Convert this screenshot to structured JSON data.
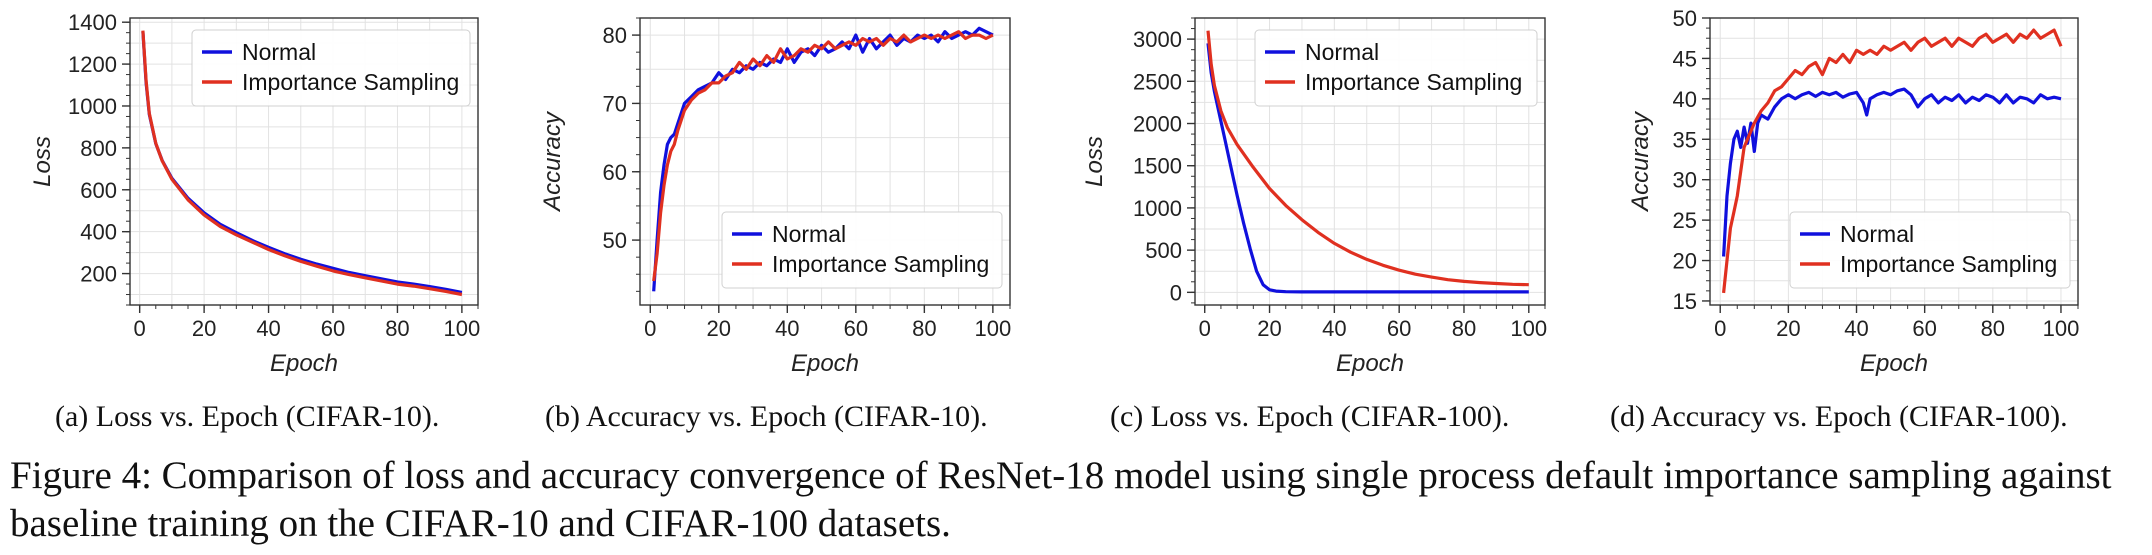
{
  "chart_data": [
    {
      "type": "line",
      "xlabel": "Epoch",
      "ylabel": "Loss",
      "xlim": [
        -3,
        105
      ],
      "ylim": [
        50,
        1420
      ],
      "xticks": [
        0,
        20,
        40,
        60,
        80,
        100
      ],
      "yticks": [
        200,
        400,
        600,
        800,
        1000,
        1200,
        1400
      ],
      "grid": true,
      "legend": "top-right",
      "caption": "(a)  Loss vs. Epoch (CIFAR-10).",
      "series": [
        {
          "name": "Normal",
          "color": "#1010dd",
          "x": [
            1,
            2,
            3,
            5,
            7,
            10,
            15,
            20,
            25,
            30,
            35,
            40,
            45,
            50,
            55,
            60,
            65,
            70,
            75,
            80,
            85,
            90,
            95,
            100
          ],
          "values": [
            1355,
            1110,
            960,
            820,
            740,
            655,
            560,
            490,
            435,
            395,
            358,
            325,
            295,
            268,
            245,
            225,
            205,
            190,
            175,
            160,
            150,
            138,
            125,
            110
          ]
        },
        {
          "name": "Importance Sampling",
          "color": "#e03020",
          "x": [
            1,
            2,
            3,
            5,
            7,
            10,
            15,
            20,
            25,
            30,
            35,
            40,
            45,
            50,
            55,
            60,
            65,
            70,
            75,
            80,
            85,
            90,
            95,
            100
          ],
          "values": [
            1360,
            1120,
            965,
            822,
            738,
            650,
            552,
            480,
            425,
            385,
            350,
            315,
            285,
            258,
            235,
            213,
            195,
            180,
            165,
            150,
            140,
            128,
            115,
            100
          ]
        }
      ]
    },
    {
      "type": "line",
      "xlabel": "Epoch",
      "ylabel": "Accuracy",
      "xlim": [
        -3,
        105
      ],
      "ylim": [
        40.5,
        82.5
      ],
      "xticks": [
        0,
        20,
        40,
        60,
        80,
        100
      ],
      "yticks": [
        50,
        60,
        70,
        80
      ],
      "grid": true,
      "legend": "lower-right",
      "caption": "(b)  Accuracy vs. Epoch (CIFAR-10).",
      "series": [
        {
          "name": "Normal",
          "color": "#1010dd",
          "x": [
            1,
            2,
            3,
            4,
            5,
            6,
            7,
            8,
            10,
            12,
            14,
            16,
            18,
            20,
            22,
            24,
            26,
            28,
            30,
            32,
            34,
            36,
            38,
            40,
            42,
            44,
            46,
            48,
            50,
            52,
            54,
            56,
            58,
            60,
            62,
            64,
            66,
            68,
            70,
            72,
            74,
            76,
            78,
            80,
            82,
            84,
            86,
            88,
            90,
            92,
            94,
            96,
            98,
            100
          ],
          "values": [
            42.5,
            50,
            57,
            61,
            64,
            65,
            65.5,
            67,
            70,
            71,
            72,
            72.5,
            73,
            74.5,
            73.5,
            75,
            74.5,
            75.5,
            75,
            76,
            75.5,
            76.5,
            76,
            78,
            76,
            77.5,
            78,
            77,
            78.5,
            77.5,
            78,
            79,
            78,
            80,
            77.5,
            79.5,
            78,
            79,
            80,
            78.5,
            79.5,
            79,
            80,
            79.5,
            80,
            79,
            80.5,
            79.5,
            80,
            80.5,
            80,
            81,
            80.5,
            80
          ]
        },
        {
          "name": "Importance Sampling",
          "color": "#e03020",
          "x": [
            1,
            2,
            3,
            4,
            5,
            6,
            7,
            8,
            10,
            12,
            14,
            16,
            18,
            20,
            22,
            24,
            26,
            28,
            30,
            32,
            34,
            36,
            38,
            40,
            42,
            44,
            46,
            48,
            50,
            52,
            54,
            56,
            58,
            60,
            62,
            64,
            66,
            68,
            70,
            72,
            74,
            76,
            78,
            80,
            82,
            84,
            86,
            88,
            90,
            92,
            94,
            96,
            98,
            100
          ],
          "values": [
            44,
            48,
            54,
            58,
            61,
            63,
            64,
            66,
            69,
            70.5,
            71.5,
            72,
            73,
            73,
            74,
            74.5,
            76,
            75,
            76.5,
            75.5,
            77,
            76,
            78,
            76.5,
            77,
            78,
            77.5,
            78.5,
            78,
            79,
            78,
            78.5,
            79,
            78.5,
            79.5,
            79,
            79.5,
            78.5,
            79.5,
            79,
            80,
            79,
            79.5,
            80,
            79.5,
            80,
            79.5,
            80,
            80.5,
            79.5,
            80,
            80,
            79.5,
            80
          ]
        }
      ]
    },
    {
      "type": "line",
      "xlabel": "Epoch",
      "ylabel": "Loss",
      "xlim": [
        -3,
        105
      ],
      "ylim": [
        -150,
        3250
      ],
      "xticks": [
        0,
        20,
        40,
        60,
        80,
        100
      ],
      "yticks": [
        0,
        500,
        1000,
        1500,
        2000,
        2500,
        3000
      ],
      "grid": true,
      "legend": "top-right",
      "caption": "(c)  Loss vs. Epoch (CIFAR-100).",
      "series": [
        {
          "name": "Normal",
          "color": "#1010dd",
          "x": [
            1,
            2,
            3,
            4,
            6,
            8,
            10,
            12,
            14,
            16,
            18,
            20,
            22,
            25,
            30,
            40,
            50,
            60,
            70,
            80,
            90,
            100
          ],
          "values": [
            2950,
            2600,
            2380,
            2200,
            1850,
            1500,
            1150,
            820,
            520,
            250,
            90,
            30,
            15,
            8,
            5,
            5,
            5,
            5,
            5,
            5,
            5,
            5
          ]
        },
        {
          "name": "Importance Sampling",
          "color": "#e03020",
          "x": [
            1,
            2,
            3,
            5,
            7,
            10,
            15,
            20,
            25,
            30,
            35,
            40,
            45,
            50,
            55,
            60,
            65,
            70,
            75,
            80,
            85,
            90,
            95,
            100
          ],
          "values": [
            3100,
            2700,
            2450,
            2150,
            1950,
            1750,
            1480,
            1230,
            1030,
            860,
            710,
            580,
            475,
            390,
            320,
            262,
            215,
            180,
            150,
            130,
            115,
            105,
            95,
            90
          ]
        }
      ]
    },
    {
      "type": "line",
      "xlabel": "Epoch",
      "ylabel": "Accuracy",
      "xlim": [
        -3,
        105
      ],
      "ylim": [
        14.5,
        50
      ],
      "xticks": [
        0,
        20,
        40,
        60,
        80,
        100
      ],
      "yticks": [
        15,
        20,
        25,
        30,
        35,
        40,
        45,
        50
      ],
      "grid": true,
      "legend": "lower-right",
      "caption": "(d)  Accuracy vs. Epoch (CIFAR-100).",
      "series": [
        {
          "name": "Normal",
          "color": "#1010dd",
          "x": [
            1,
            2,
            3,
            4,
            5,
            6,
            7,
            8,
            9,
            10,
            11,
            12,
            14,
            16,
            18,
            20,
            22,
            24,
            26,
            28,
            30,
            32,
            34,
            36,
            38,
            40,
            42,
            43,
            44,
            46,
            48,
            50,
            52,
            54,
            56,
            58,
            60,
            62,
            64,
            66,
            68,
            70,
            72,
            74,
            76,
            78,
            80,
            82,
            84,
            86,
            88,
            90,
            92,
            94,
            96,
            98,
            100
          ],
          "values": [
            20.5,
            28,
            32,
            35,
            36,
            34,
            36.5,
            34.5,
            37,
            33.5,
            37,
            38,
            37.5,
            39,
            40,
            40.5,
            40,
            40.5,
            40.8,
            40.3,
            40.8,
            40.5,
            40.8,
            40.2,
            40.6,
            40.8,
            39.5,
            38,
            40,
            40.5,
            40.8,
            40.5,
            41,
            41.2,
            40.5,
            39,
            40,
            40.5,
            39.5,
            40.2,
            39.8,
            40.5,
            39.5,
            40.2,
            39.8,
            40.5,
            40.2,
            39.5,
            40.5,
            39.5,
            40.2,
            40,
            39.5,
            40.5,
            40,
            40.2,
            40
          ]
        },
        {
          "name": "Importance Sampling",
          "color": "#e03020",
          "x": [
            1,
            2,
            3,
            4,
            5,
            6,
            7,
            8,
            10,
            12,
            14,
            16,
            18,
            20,
            22,
            24,
            26,
            28,
            30,
            32,
            34,
            36,
            38,
            40,
            42,
            44,
            46,
            48,
            50,
            52,
            54,
            56,
            58,
            60,
            62,
            64,
            66,
            68,
            70,
            72,
            74,
            76,
            78,
            80,
            82,
            84,
            86,
            88,
            90,
            92,
            94,
            96,
            98,
            100
          ],
          "values": [
            16,
            20,
            24,
            26,
            28,
            31,
            34,
            35,
            37,
            38.5,
            39.5,
            41,
            41.5,
            42.5,
            43.5,
            43,
            44,
            44.5,
            43,
            45,
            44.5,
            45.5,
            44.5,
            46,
            45.5,
            46,
            45.5,
            46.5,
            46,
            46.5,
            47,
            46,
            47,
            47.5,
            46.5,
            47,
            47.5,
            46.5,
            47.5,
            47,
            46.5,
            47.5,
            48,
            47,
            47.5,
            48,
            47,
            48,
            47.5,
            48.5,
            47.5,
            48,
            48.5,
            46.5
          ]
        }
      ]
    }
  ],
  "figure_caption": "Figure 4:  Comparison of loss and accuracy convergence of ResNet-18 model using single process default importance sampling against baseline training on the CIFAR-10 and CIFAR-100 datasets."
}
